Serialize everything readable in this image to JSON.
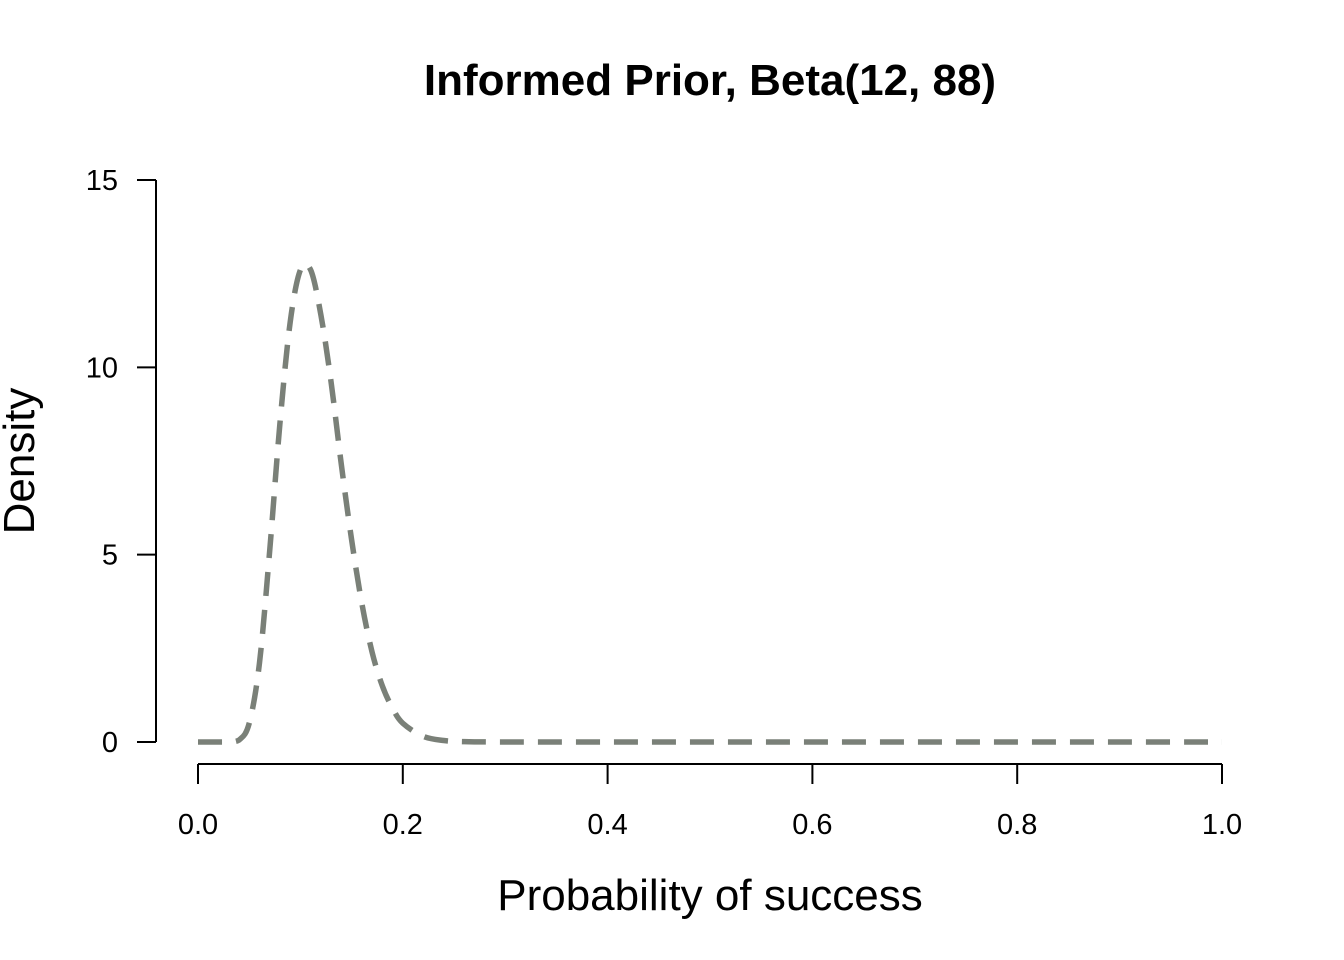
{
  "chart_data": {
    "type": "line",
    "title": "Informed Prior, Beta(12, 88)",
    "xlabel": "Probability of success",
    "ylabel": "Density",
    "xlim": [
      0,
      1
    ],
    "ylim": [
      0,
      15
    ],
    "x_ticks": [
      0.0,
      0.2,
      0.4,
      0.6,
      0.8,
      1.0
    ],
    "x_tick_labels": [
      "0.0",
      "0.2",
      "0.4",
      "0.6",
      "0.8",
      "1.0"
    ],
    "y_ticks": [
      0,
      5,
      10,
      15
    ],
    "y_tick_labels": [
      "0",
      "5",
      "10",
      "15"
    ],
    "grid": false,
    "legend": "none",
    "series": [
      {
        "line_style": "dashed",
        "color": "#7a8078",
        "x": [
          0.0,
          0.02,
          0.03,
          0.04,
          0.05,
          0.06,
          0.07,
          0.08,
          0.09,
          0.1,
          0.11,
          0.12,
          0.13,
          0.14,
          0.15,
          0.16,
          0.17,
          0.18,
          0.19,
          0.2,
          0.22,
          0.24,
          0.26,
          0.3,
          0.4,
          0.5,
          0.6,
          0.7,
          0.8,
          0.9,
          1.0
        ],
        "y": [
          0.0,
          0.0,
          0.0,
          0.05,
          0.5,
          2.1,
          5.1,
          8.5,
          11.2,
          12.6,
          12.6,
          11.4,
          9.6,
          7.4,
          5.4,
          3.7,
          2.4,
          1.5,
          0.9,
          0.5,
          0.15,
          0.04,
          0.01,
          0.0,
          0.0,
          0.0,
          0.0,
          0.0,
          0.0,
          0.0,
          0.0
        ]
      }
    ]
  }
}
